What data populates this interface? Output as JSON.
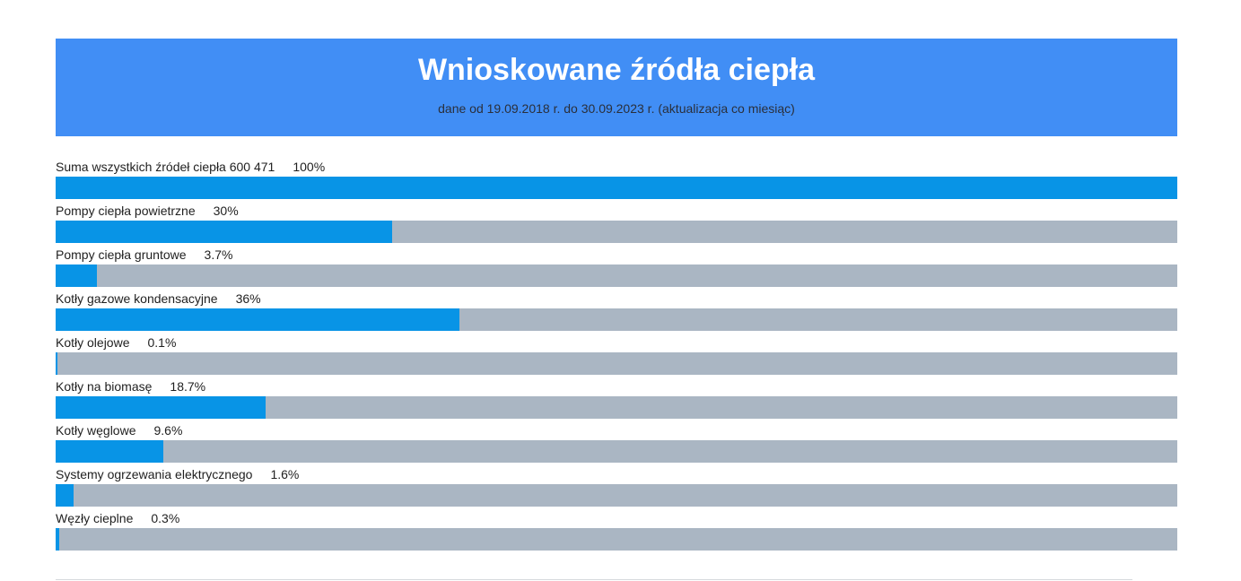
{
  "header": {
    "title": "Wnioskowane źródła ciepła",
    "subtitle": "dane od 19.09.2018 r. do 30.09.2023 r. (aktualizacja co miesiąc)"
  },
  "colors": {
    "header_bg": "#418ef5",
    "bar_fill": "#0894e6",
    "bar_track": "#aab6c3"
  },
  "chart_data": {
    "type": "bar",
    "orientation": "horizontal",
    "title": "Wnioskowane źródła ciepła",
    "subtitle": "dane od 19.09.2018 r. do 30.09.2023 r. (aktualizacja co miesiąc)",
    "xlim": [
      0,
      100
    ],
    "grid": false,
    "legend": "none",
    "categories": [
      "Suma wszystkich źródeł ciepła 600 471",
      "Pompy ciepła powietrzne",
      "Pompy ciepła gruntowe",
      "Kotły gazowe kondensacyjne",
      "Kotły olejowe",
      "Kotły na biomasę",
      "Kotły węglowe",
      "Systemy ogrzewania elektrycznego",
      "Węzły cieplne"
    ],
    "values": [
      100,
      30,
      3.7,
      36,
      0.1,
      18.7,
      9.6,
      1.6,
      0.3
    ],
    "value_labels": [
      "100%",
      "30%",
      "3.7%",
      "36%",
      "0.1%",
      "18.7%",
      "9.6%",
      "1.6%",
      "0.3%"
    ]
  }
}
